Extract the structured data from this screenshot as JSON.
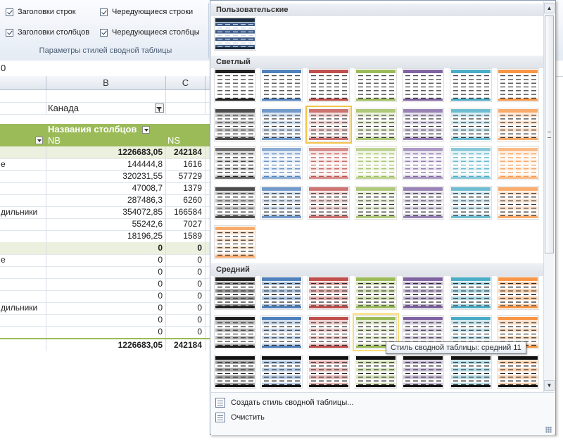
{
  "ribbon": {
    "options": [
      {
        "label": "Заголовки строк",
        "checked": true
      },
      {
        "label": "Чередующиеся строки",
        "checked": true
      },
      {
        "label": "Заголовки столбцов",
        "checked": true
      },
      {
        "label": "Чередующиеся столбцы",
        "checked": true
      }
    ],
    "group_label": "Параметры стилей сводной таблицы"
  },
  "formula_bar": {
    "value": "0"
  },
  "columns": {
    "b": "B",
    "c": "C"
  },
  "pivot": {
    "filter_value": "Канада",
    "col_labels_title": "Названия столбцов",
    "col_nb": "NB",
    "col_ns": "NS",
    "rows": [
      {
        "label": "",
        "nb": "1226683,05",
        "ns": "242184",
        "type": "group"
      },
      {
        "label": "е",
        "nb": "144444,8",
        "ns": "1616",
        "type": "item"
      },
      {
        "label": "",
        "nb": "320231,55",
        "ns": "57729",
        "type": "item"
      },
      {
        "label": "",
        "nb": "47008,7",
        "ns": "1379",
        "type": "item"
      },
      {
        "label": "",
        "nb": "287486,3",
        "ns": "6260",
        "type": "item"
      },
      {
        "label": "дильники",
        "nb": "354072,85",
        "ns": "166584",
        "type": "item"
      },
      {
        "label": "",
        "nb": "55242,6",
        "ns": "7027",
        "type": "item"
      },
      {
        "label": "",
        "nb": "18196,25",
        "ns": "1589",
        "type": "item"
      },
      {
        "label": "",
        "nb": "0",
        "ns": "0",
        "type": "group"
      },
      {
        "label": "е",
        "nb": "0",
        "ns": "0",
        "type": "item"
      },
      {
        "label": "",
        "nb": "0",
        "ns": "0",
        "type": "item"
      },
      {
        "label": "",
        "nb": "0",
        "ns": "0",
        "type": "item"
      },
      {
        "label": "",
        "nb": "0",
        "ns": "0",
        "type": "item"
      },
      {
        "label": "дильники",
        "nb": "0",
        "ns": "0",
        "type": "item"
      },
      {
        "label": "",
        "nb": "0",
        "ns": "0",
        "type": "item"
      },
      {
        "label": "",
        "nb": "0",
        "ns": "0",
        "type": "item"
      },
      {
        "label": "",
        "nb": "1226683,05",
        "ns": "242184",
        "type": "total"
      }
    ]
  },
  "gallery": {
    "sections": {
      "custom": "Пользовательские",
      "light": "Светлый",
      "medium": "Средний"
    },
    "colors": {
      "dark": "#1f1f1f",
      "blue": "#4f81bd",
      "red": "#c0504d",
      "green": "#9bbb59",
      "purple": "#8064a2",
      "aqua": "#4bacc6",
      "orange": "#f79646",
      "gray": "#7f7f7f",
      "selection": "#f4c24a"
    },
    "tooltip": "Стиль сводной таблицы: средний 11",
    "footer": {
      "create": "Создать стиль сводной таблицы...",
      "clear": "Очистить"
    }
  }
}
